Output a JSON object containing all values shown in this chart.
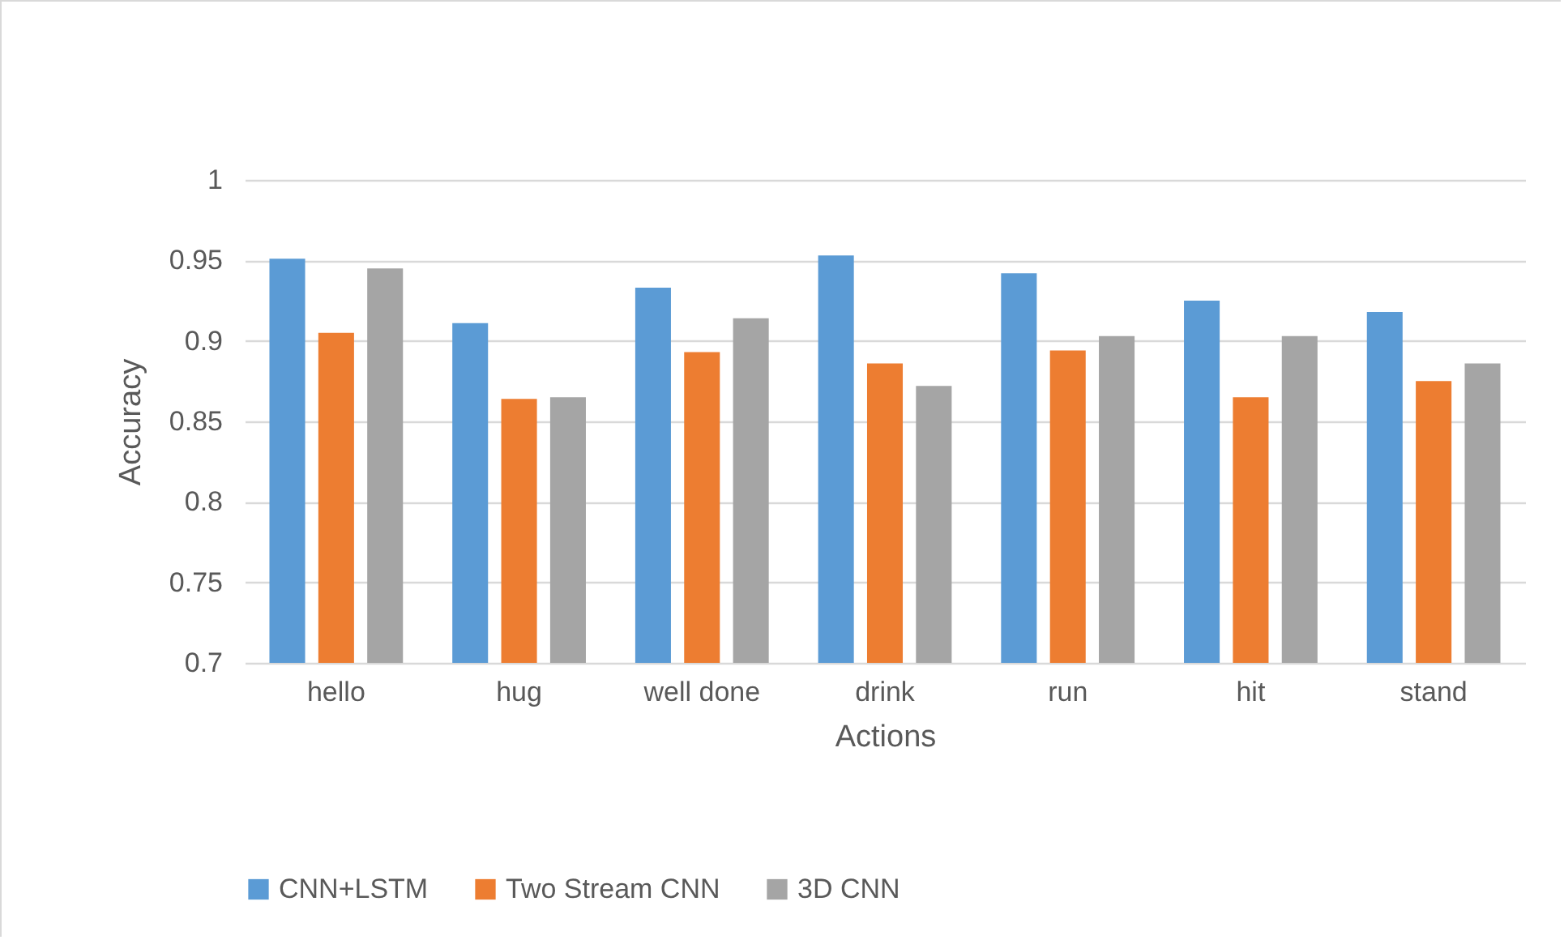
{
  "chart_data": {
    "type": "bar",
    "xlabel": "Actions",
    "ylabel": "Accuracy",
    "categories": [
      "hello",
      "hug",
      "well done",
      "drink",
      "run",
      "hit",
      "stand"
    ],
    "series": [
      {
        "name": "CNN+LSTM",
        "color": "#5b9bd5",
        "values": [
          0.951,
          0.911,
          0.933,
          0.953,
          0.942,
          0.925,
          0.918
        ]
      },
      {
        "name": "Two Stream CNN",
        "color": "#ed7d31",
        "values": [
          0.905,
          0.864,
          0.893,
          0.886,
          0.894,
          0.865,
          0.875
        ]
      },
      {
        "name": "3D CNN",
        "color": "#a5a5a5",
        "values": [
          0.945,
          0.865,
          0.914,
          0.872,
          0.903,
          0.903,
          0.886
        ]
      }
    ],
    "ylim": [
      0.7,
      1
    ],
    "yticks": [
      0.7,
      0.75,
      0.8,
      0.85,
      0.9,
      0.95,
      1
    ],
    "grid": "y",
    "legend": "bottom"
  }
}
